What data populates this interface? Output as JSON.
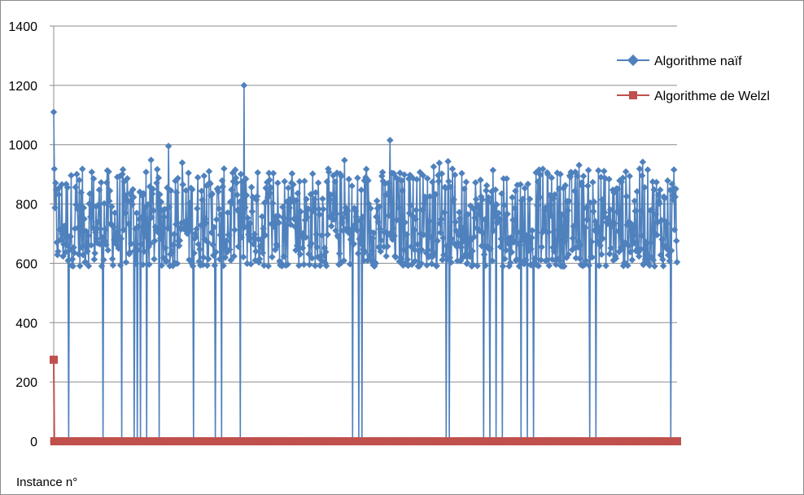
{
  "chart_data": {
    "type": "line",
    "xlabel": "Instance n°",
    "ylabel": "",
    "ylim": [
      0,
      1400
    ],
    "yticks": [
      0,
      200,
      400,
      600,
      800,
      1000,
      1200,
      1400
    ],
    "grid": "horizontal",
    "legend_position": "right",
    "x_count": 1000,
    "series": [
      {
        "name": "Algorithme naïf",
        "color": "#4f81bd",
        "marker": "diamond",
        "typical_range": [
          560,
          1010
        ],
        "values_highlights": [
          {
            "x": 1,
            "y": 1110
          },
          {
            "x": 185,
            "y": 995
          },
          {
            "x": 260,
            "y": 1035
          },
          {
            "x": 306,
            "y": 1200
          },
          {
            "x": 540,
            "y": 1015
          },
          {
            "x": 630,
            "y": 1000
          }
        ],
        "drops_to_zero_at": [
          25,
          80,
          110,
          130,
          135,
          140,
          150,
          170,
          225,
          260,
          270,
          300,
          480,
          490,
          495,
          630,
          635,
          690,
          700,
          710,
          720,
          750,
          760,
          770,
          860,
          870,
          990
        ]
      },
      {
        "name": "Algorithme de Welzl",
        "color": "#c0504d",
        "marker": "square",
        "values_highlights": [
          {
            "x": 1,
            "y": 275
          }
        ],
        "typical_value": 0
      }
    ]
  }
}
